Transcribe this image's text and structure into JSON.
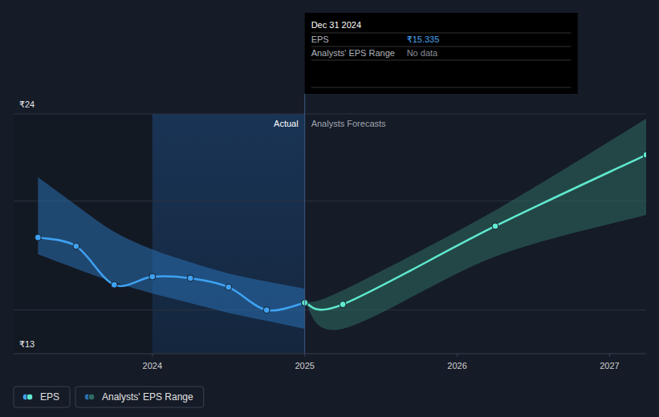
{
  "chart_data": {
    "type": "line",
    "xlim": [
      2023.09,
      2027.24
    ],
    "xticks": [
      2024,
      2025,
      2026,
      2027
    ],
    "ylim": [
      13,
      24
    ],
    "yticks": [
      {
        "value": 13,
        "label": "₹13"
      },
      {
        "value": 15,
        "label": null
      },
      {
        "value": 20,
        "label": null
      },
      {
        "value": 24,
        "label": "₹24"
      }
    ],
    "grid": true,
    "highlight": [
      2024.0,
      2025.0
    ],
    "annotations": [
      "Actual",
      "Analysts Forecasts"
    ],
    "tooltip": {
      "x": 2025.0,
      "date": "Dec 31 2024",
      "rows": [
        {
          "label": "EPS",
          "value": "₹15.335"
        },
        {
          "label": "Analysts' EPS Range",
          "value": "No data"
        }
      ]
    },
    "series": [
      {
        "name": "EPS",
        "type": "line",
        "color": "#3ea2f2",
        "marker": "circle",
        "x": [
          2023.25,
          2023.5,
          2023.75,
          2024.0,
          2024.25,
          2024.5,
          2024.75,
          2025.0
        ],
        "values": [
          18.33,
          17.93,
          16.16,
          16.53,
          16.46,
          16.05,
          15.0,
          15.335
        ]
      },
      {
        "name": "EPS",
        "type": "line",
        "color": "#5fe9cf",
        "marker": "circle",
        "x": [
          2025.0,
          2025.25,
          2026.25,
          2027.24
        ],
        "values": [
          15.335,
          15.26,
          18.85,
          22.12
        ]
      },
      {
        "name": "Analysts' EPS Range",
        "type": "band",
        "color": "#2a6fb3",
        "x": [
          2023.25,
          2023.5,
          2023.75,
          2024.0,
          2024.25,
          2024.5,
          2024.75,
          2025.0
        ],
        "low": [
          17.56,
          16.9,
          16.27,
          15.76,
          15.32,
          14.87,
          14.51,
          14.14
        ],
        "high": [
          21.09,
          19.81,
          18.59,
          17.78,
          17.19,
          16.68,
          16.31,
          15.98
        ]
      },
      {
        "name": "Analysts' EPS Range",
        "type": "band",
        "color": "#2f6b63",
        "x": [
          2025.0,
          2025.25,
          2026.25,
          2027.24
        ],
        "low": [
          15.335,
          14.14,
          17.45,
          19.36
        ],
        "high": [
          15.335,
          15.91,
          19.58,
          23.78
        ]
      }
    ]
  }
}
